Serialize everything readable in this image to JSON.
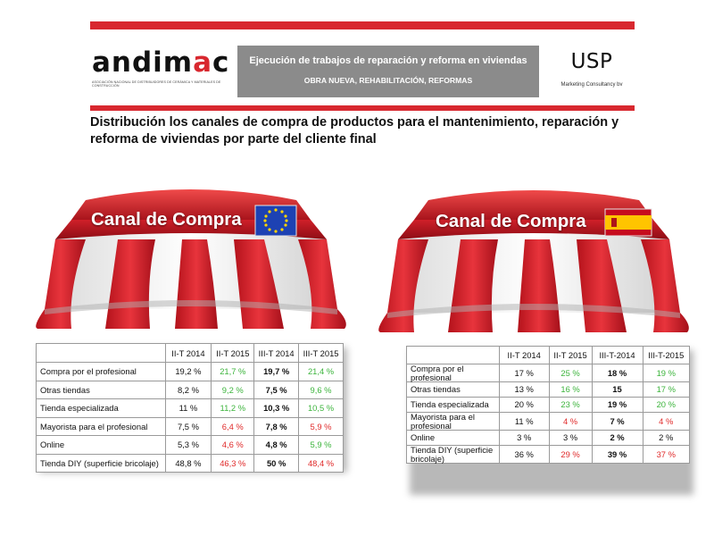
{
  "header": {
    "logo_text_main": "andim",
    "logo_text_accent": "a",
    "logo_text_end": "c",
    "logo_subtitle": "ASOCIACIÓN NACIONAL DE DISTRIBUIDORES DE CERÁMICA Y MATERIALES DE CONSTRUCCIÓN",
    "title": "Ejecución de trabajos de reparación y reforma en viviendas",
    "subtitle": "OBRA NUEVA, REHABILITACIÓN, REFORMAS",
    "usp_logo": "USP",
    "usp_subtitle": "Marketing Consultancy bv",
    "colors": {
      "brand_red": "#d8282f",
      "grey_box": "#8b8b8b"
    }
  },
  "heading": "Distribución los canales de compra de productos para el mantenimiento, reparación y reforma de viviendas por parte del cliente final",
  "awnings": {
    "eu": {
      "label": "Canal de Compra",
      "flag": "eu-flag-icon"
    },
    "es": {
      "label": "Canal de Compra",
      "flag": "spain-flag-icon"
    }
  },
  "table_eu": {
    "headers": [
      "",
      "II-T 2014",
      "II-T 2015",
      "III-T 2014",
      "III-T 2015"
    ],
    "rows": [
      {
        "label": "Compra por el profesional",
        "v1": "19,2 %",
        "v2": "21,7 %",
        "v3": "19,7 %",
        "v4": "21,4 %",
        "c2": "green",
        "c4": "green"
      },
      {
        "label": "Otras tiendas",
        "v1": "8,2 %",
        "v2": "9,2 %",
        "v3": "7,5 %",
        "v4": "9,6 %",
        "c2": "green",
        "c4": "green"
      },
      {
        "label": "Tienda especializada",
        "v1": "11 %",
        "v2": "11,2 %",
        "v3": "10,3 %",
        "v4": "10,5 %",
        "c2": "green",
        "c4": "green"
      },
      {
        "label": "Mayorista para el profesional",
        "v1": "7,5 %",
        "v2": "6,4 %",
        "v3": "7,8 %",
        "v4": "5,9 %",
        "c2": "red",
        "c4": "red"
      },
      {
        "label": "Online",
        "v1": "5,3 %",
        "v2": "4,6 %",
        "v3": "4,8 %",
        "v4": "5,9 %",
        "c2": "red",
        "c4": "green"
      },
      {
        "label": "Tienda DIY (superficie bricolaje)",
        "v1": "48,8 %",
        "v2": "46,3 %",
        "v3": "50 %",
        "v4": "48,4 %",
        "c2": "red",
        "c4": "red"
      }
    ]
  },
  "table_es": {
    "headers": [
      "",
      "II-T 2014",
      "II-T 2015",
      "III-T-2014",
      "III-T-2015"
    ],
    "rows": [
      {
        "label": "Compra por el profesional",
        "v1": "17 %",
        "v2": "25 %",
        "v3": "18 %",
        "v4": "19 %",
        "c2": "green",
        "c4": "green"
      },
      {
        "label": "Otras tiendas",
        "v1": "13 %",
        "v2": "16 %",
        "v3": "15",
        "v4": "17 %",
        "c2": "green",
        "c4": "green"
      },
      {
        "label": "Tienda especializada",
        "v1": "20 %",
        "v2": "23 %",
        "v3": "19 %",
        "v4": "20 %",
        "c2": "green",
        "c4": "green"
      },
      {
        "label": "Mayorista para el profesional",
        "v1": "11 %",
        "v2": "4 %",
        "v3": "7 %",
        "v4": "4 %",
        "c2": "red",
        "c4": "red"
      },
      {
        "label": "Online",
        "v1": "3 %",
        "v2": "3 %",
        "v3": "2 %",
        "v4": "2 %",
        "c2": "",
        "c4": ""
      },
      {
        "label": "Tienda DIY (superficie bricolaje)",
        "v1": "36 %",
        "v2": "29 %",
        "v3": "39 %",
        "v4": "37 %",
        "c2": "red",
        "c4": "red"
      }
    ]
  }
}
